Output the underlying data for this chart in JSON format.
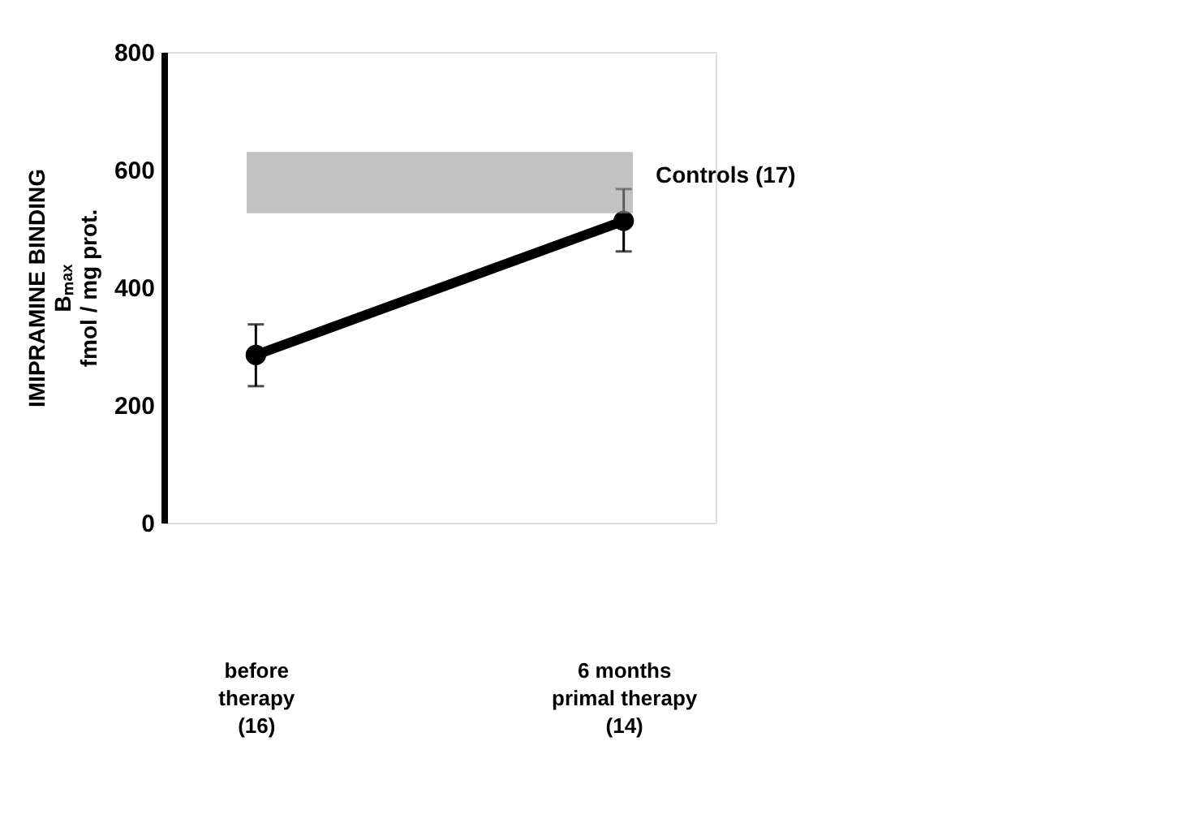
{
  "chart_data": {
    "type": "line",
    "ylabel": "IMIPRAMINE BINDING\nBₘₐₓ\nfmol / mg prot.",
    "categories": [
      "before\ntherapy\n(16)",
      "6 months\nprimal therapy\n(14)"
    ],
    "series": [
      {
        "color": "#000000",
        "values": [
          285,
          513
        ],
        "errors": [
          [
            232,
            337
          ],
          [
            461,
            567
          ]
        ]
      }
    ],
    "ylim": [
      0,
      800
    ],
    "yticks": [
      0,
      200,
      400,
      600,
      800
    ],
    "bands": [
      {
        "axis": "y",
        "from": 526,
        "to": 630,
        "label": "Controls (17)",
        "color": "#9a9a9a"
      }
    ],
    "marker": "circle",
    "line_style": "solid",
    "grid": false
  }
}
